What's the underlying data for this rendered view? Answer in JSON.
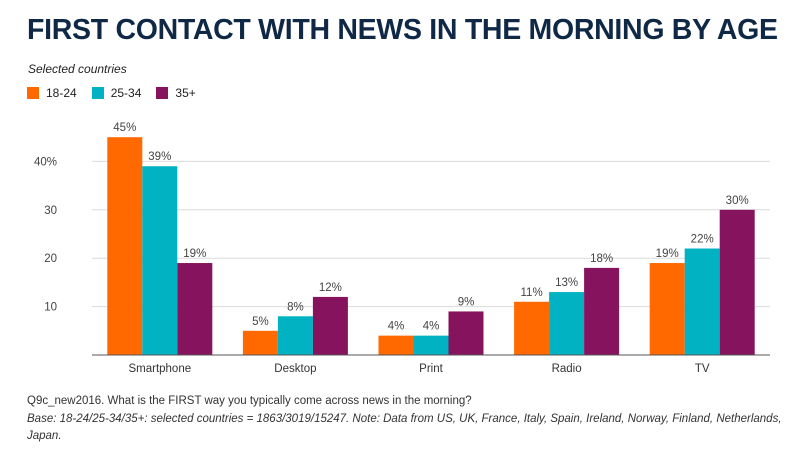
{
  "title": "FIRST CONTACT WITH NEWS IN THE MORNING BY AGE",
  "subtitle": "Selected countries",
  "footer": {
    "question": "Q9c_new2016. What is the FIRST way you typically come across news in the morning?",
    "base": "Base: 18-24/25-34/35+: selected countries = 1863/3019/15247. Note: Data from US, UK, France, Italy, Spain, Ireland, Norway, Finland, Netherlands, Japan."
  },
  "chart_data": {
    "type": "bar",
    "categories": [
      "Smartphone",
      "Desktop",
      "Print",
      "Radio",
      "TV"
    ],
    "series": [
      {
        "name": "18-24",
        "color": "#ff6900",
        "values": [
          45,
          5,
          4,
          11,
          19
        ]
      },
      {
        "name": "25-34",
        "color": "#00b2c2",
        "values": [
          39,
          8,
          4,
          13,
          22
        ]
      },
      {
        "name": "35+",
        "color": "#86135e",
        "values": [
          19,
          12,
          9,
          18,
          30
        ]
      }
    ],
    "data_labels": [
      [
        "45%",
        "5%",
        "4%",
        "11%",
        "19%"
      ],
      [
        "39%",
        "8%",
        "4%",
        "13%",
        "22%"
      ],
      [
        "19%",
        "12%",
        "9%",
        "18%",
        "30%"
      ]
    ],
    "yticks": [
      {
        "value": 10,
        "label": "10"
      },
      {
        "value": 20,
        "label": "20"
      },
      {
        "value": 30,
        "label": "30"
      },
      {
        "value": 40,
        "label": "40%"
      }
    ],
    "ylim": [
      0,
      50
    ],
    "grid": true,
    "legend_position": "top-left"
  }
}
